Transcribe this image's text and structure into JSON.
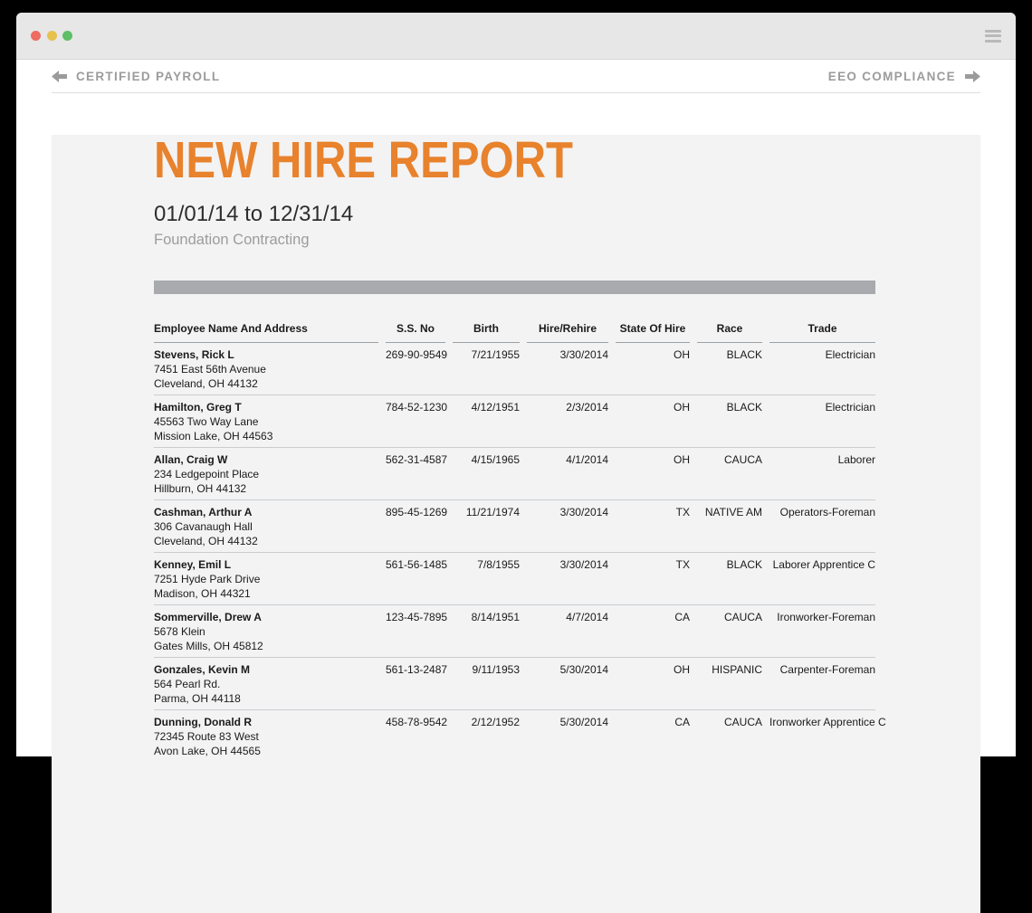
{
  "window": {
    "traffic_lights": [
      "#ED6B60",
      "#E7C14C",
      "#5FBE66"
    ]
  },
  "nav": {
    "prev_label": "CERTIFIED PAYROLL",
    "next_label": "EEO COMPLIANCE"
  },
  "report": {
    "title": "NEW HIRE REPORT",
    "date_range": "01/01/14 to 12/31/14",
    "company": "Foundation Contracting",
    "table": {
      "headers": [
        "Employee Name And Address",
        "S.S. No",
        "Birth",
        "Hire/Rehire",
        "State Of Hire",
        "Race",
        "Trade"
      ],
      "rows": [
        {
          "name": "Stevens, Rick L",
          "address1": "7451 East 56th Avenue",
          "address2": "Cleveland, OH 44132",
          "ssn": "269-90-9549",
          "birth": "7/21/1955",
          "hire": "3/30/2014",
          "state": "OH",
          "race": "BLACK",
          "trade": "Electrician"
        },
        {
          "name": "Hamilton, Greg T",
          "address1": "45563 Two Way Lane",
          "address2": "Mission Lake, OH 44563",
          "ssn": "784-52-1230",
          "birth": "4/12/1951",
          "hire": "2/3/2014",
          "state": "OH",
          "race": "BLACK",
          "trade": "Electrician"
        },
        {
          "name": "Allan, Craig W",
          "address1": "234 Ledgepoint Place",
          "address2": "Hillburn, OH 44132",
          "ssn": "562-31-4587",
          "birth": "4/15/1965",
          "hire": "4/1/2014",
          "state": "OH",
          "race": "CAUCA",
          "trade": "Laborer"
        },
        {
          "name": "Cashman, Arthur A",
          "address1": "306 Cavanaugh Hall",
          "address2": "Cleveland, OH 44132",
          "ssn": "895-45-1269",
          "birth": "11/21/1974",
          "hire": "3/30/2014",
          "state": "TX",
          "race": "NATIVE AM",
          "trade": "Operators-Foreman"
        },
        {
          "name": "Kenney, Emil L",
          "address1": "7251 Hyde Park Drive",
          "address2": "Madison, OH 44321",
          "ssn": "561-56-1485",
          "birth": "7/8/1955",
          "hire": "3/30/2014",
          "state": "TX",
          "race": "BLACK",
          "trade": "Laborer Apprentice C"
        },
        {
          "name": "Sommerville, Drew A",
          "address1": "5678 Klein",
          "address2": "Gates Mills, OH 45812",
          "ssn": "123-45-7895",
          "birth": "8/14/1951",
          "hire": "4/7/2014",
          "state": "CA",
          "race": "CAUCA",
          "trade": "Ironworker-Foreman"
        },
        {
          "name": "Gonzales, Kevin M",
          "address1": "564 Pearl Rd.",
          "address2": "Parma, OH 44118",
          "ssn": "561-13-2487",
          "birth": "9/11/1953",
          "hire": "5/30/2014",
          "state": "OH",
          "race": "HISPANIC",
          "trade": "Carpenter-Foreman"
        },
        {
          "name": "Dunning, Donald R",
          "address1": "72345 Route 83 West",
          "address2": "Avon Lake, OH 44565",
          "ssn": "458-78-9542",
          "birth": "2/12/1952",
          "hire": "5/30/2014",
          "state": "CA",
          "race": "CAUCA",
          "trade": "Ironworker Apprentice C"
        }
      ]
    }
  },
  "colors": {
    "accent_orange": "#E8822D",
    "bar_gray": "#A8AAAD"
  }
}
